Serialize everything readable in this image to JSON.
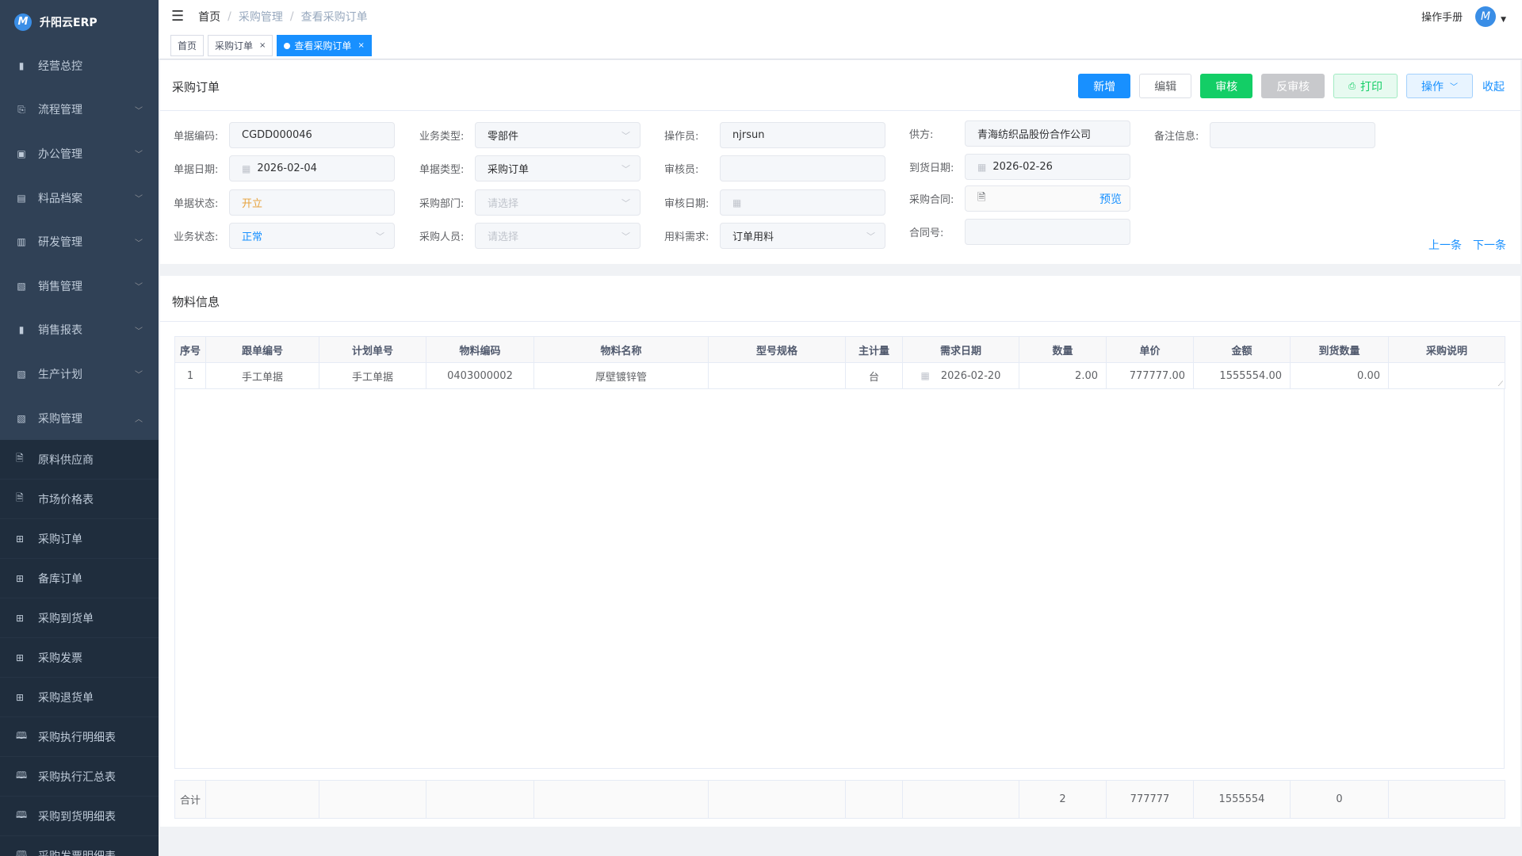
{
  "app": {
    "title": "升阳云ERP",
    "logo_letter": "M"
  },
  "sidebar": {
    "items": [
      {
        "label": "经营总控",
        "icon": "bar-chart-icon",
        "expandable": false
      },
      {
        "label": "流程管理",
        "icon": "flow-icon",
        "expandable": true
      },
      {
        "label": "办公管理",
        "icon": "office-icon",
        "expandable": true
      },
      {
        "label": "料品档案",
        "icon": "archive-icon",
        "expandable": true
      },
      {
        "label": "研发管理",
        "icon": "research-icon",
        "expandable": true
      },
      {
        "label": "销售管理",
        "icon": "sales-icon",
        "expandable": true
      },
      {
        "label": "销售报表",
        "icon": "bar-chart-icon",
        "expandable": true
      },
      {
        "label": "生产计划",
        "icon": "plan-icon",
        "expandable": true
      },
      {
        "label": "采购管理",
        "icon": "purchase-icon",
        "expandable": true,
        "expanded": true
      }
    ],
    "subitems": [
      {
        "label": "原料供应商",
        "icon": "document-edit-icon"
      },
      {
        "label": "市场价格表",
        "icon": "document-edit-icon"
      },
      {
        "label": "采购订单",
        "icon": "table-icon"
      },
      {
        "label": "备库订单",
        "icon": "table-icon"
      },
      {
        "label": "采购到货单",
        "icon": "table-icon"
      },
      {
        "label": "采购发票",
        "icon": "table-icon"
      },
      {
        "label": "采购退货单",
        "icon": "table-icon"
      },
      {
        "label": "采购执行明细表",
        "icon": "book-icon"
      },
      {
        "label": "采购执行汇总表",
        "icon": "book-icon"
      },
      {
        "label": "采购到货明细表",
        "icon": "book-icon"
      },
      {
        "label": "采购发票明细表",
        "icon": "book-icon"
      }
    ]
  },
  "header": {
    "breadcrumb": [
      "首页",
      "采购管理",
      "查看采购订单"
    ],
    "manual": "操作手册"
  },
  "tabs": [
    {
      "label": "首页"
    },
    {
      "label": "采购订单",
      "closable": true
    },
    {
      "label": "查看采购订单",
      "closable": true,
      "active": true
    }
  ],
  "order": {
    "title": "采购订单",
    "buttons": {
      "add": "新增",
      "edit": "编辑",
      "audit": "审核",
      "unaudit": "反审核",
      "print": "打印",
      "operate": "操作",
      "collapse": "收起"
    },
    "prev": "上一条",
    "next": "下一条",
    "fields": {
      "code": {
        "label": "单据编码:",
        "value": "CGDD000046"
      },
      "date": {
        "label": "单据日期:",
        "value": "2026-02-04"
      },
      "status": {
        "label": "单据状态:",
        "value": "开立",
        "color": "#e6a23c"
      },
      "biz_status": {
        "label": "业务状态:",
        "value": "正常",
        "color": "#1890ff"
      },
      "biz_type": {
        "label": "业务类型:",
        "value": "零部件"
      },
      "doc_type": {
        "label": "单据类型:",
        "value": "采购订单"
      },
      "dept": {
        "label": "采购部门:",
        "placeholder": "请选择"
      },
      "buyer": {
        "label": "采购人员:",
        "placeholder": "请选择"
      },
      "operator": {
        "label": "操作员:",
        "value": "njrsun"
      },
      "auditor": {
        "label": "审核员:",
        "value": ""
      },
      "audit_date": {
        "label": "审核日期:",
        "value": ""
      },
      "material_need": {
        "label": "用料需求:",
        "value": "订单用料"
      },
      "supplier": {
        "label": "供方:",
        "value": "青海纺织品股份合作公司"
      },
      "arrival_date": {
        "label": "到货日期:",
        "value": "2026-02-26"
      },
      "contract": {
        "label": "采购合同:",
        "preview": "预览"
      },
      "contract_no": {
        "label": "合同号:",
        "value": ""
      },
      "remark": {
        "label": "备注信息:",
        "value": ""
      }
    }
  },
  "materials": {
    "title": "物料信息",
    "columns": [
      "序号",
      "跟单编号",
      "计划单号",
      "物料编码",
      "物料名称",
      "型号规格",
      "主计量",
      "需求日期",
      "数量",
      "单价",
      "金额",
      "到货数量",
      "采购说明"
    ],
    "rows": [
      [
        "1",
        "手工单据",
        "手工单据",
        "0403000002",
        "厚壁镀锌管",
        "",
        "台",
        "2026-02-20",
        "2.00",
        "777777.00",
        "1555554.00",
        "0.00",
        ""
      ]
    ],
    "footer": [
      "合计",
      "",
      "",
      "",
      "",
      "",
      "",
      "",
      "2",
      "777777",
      "1555554",
      "0",
      ""
    ]
  }
}
